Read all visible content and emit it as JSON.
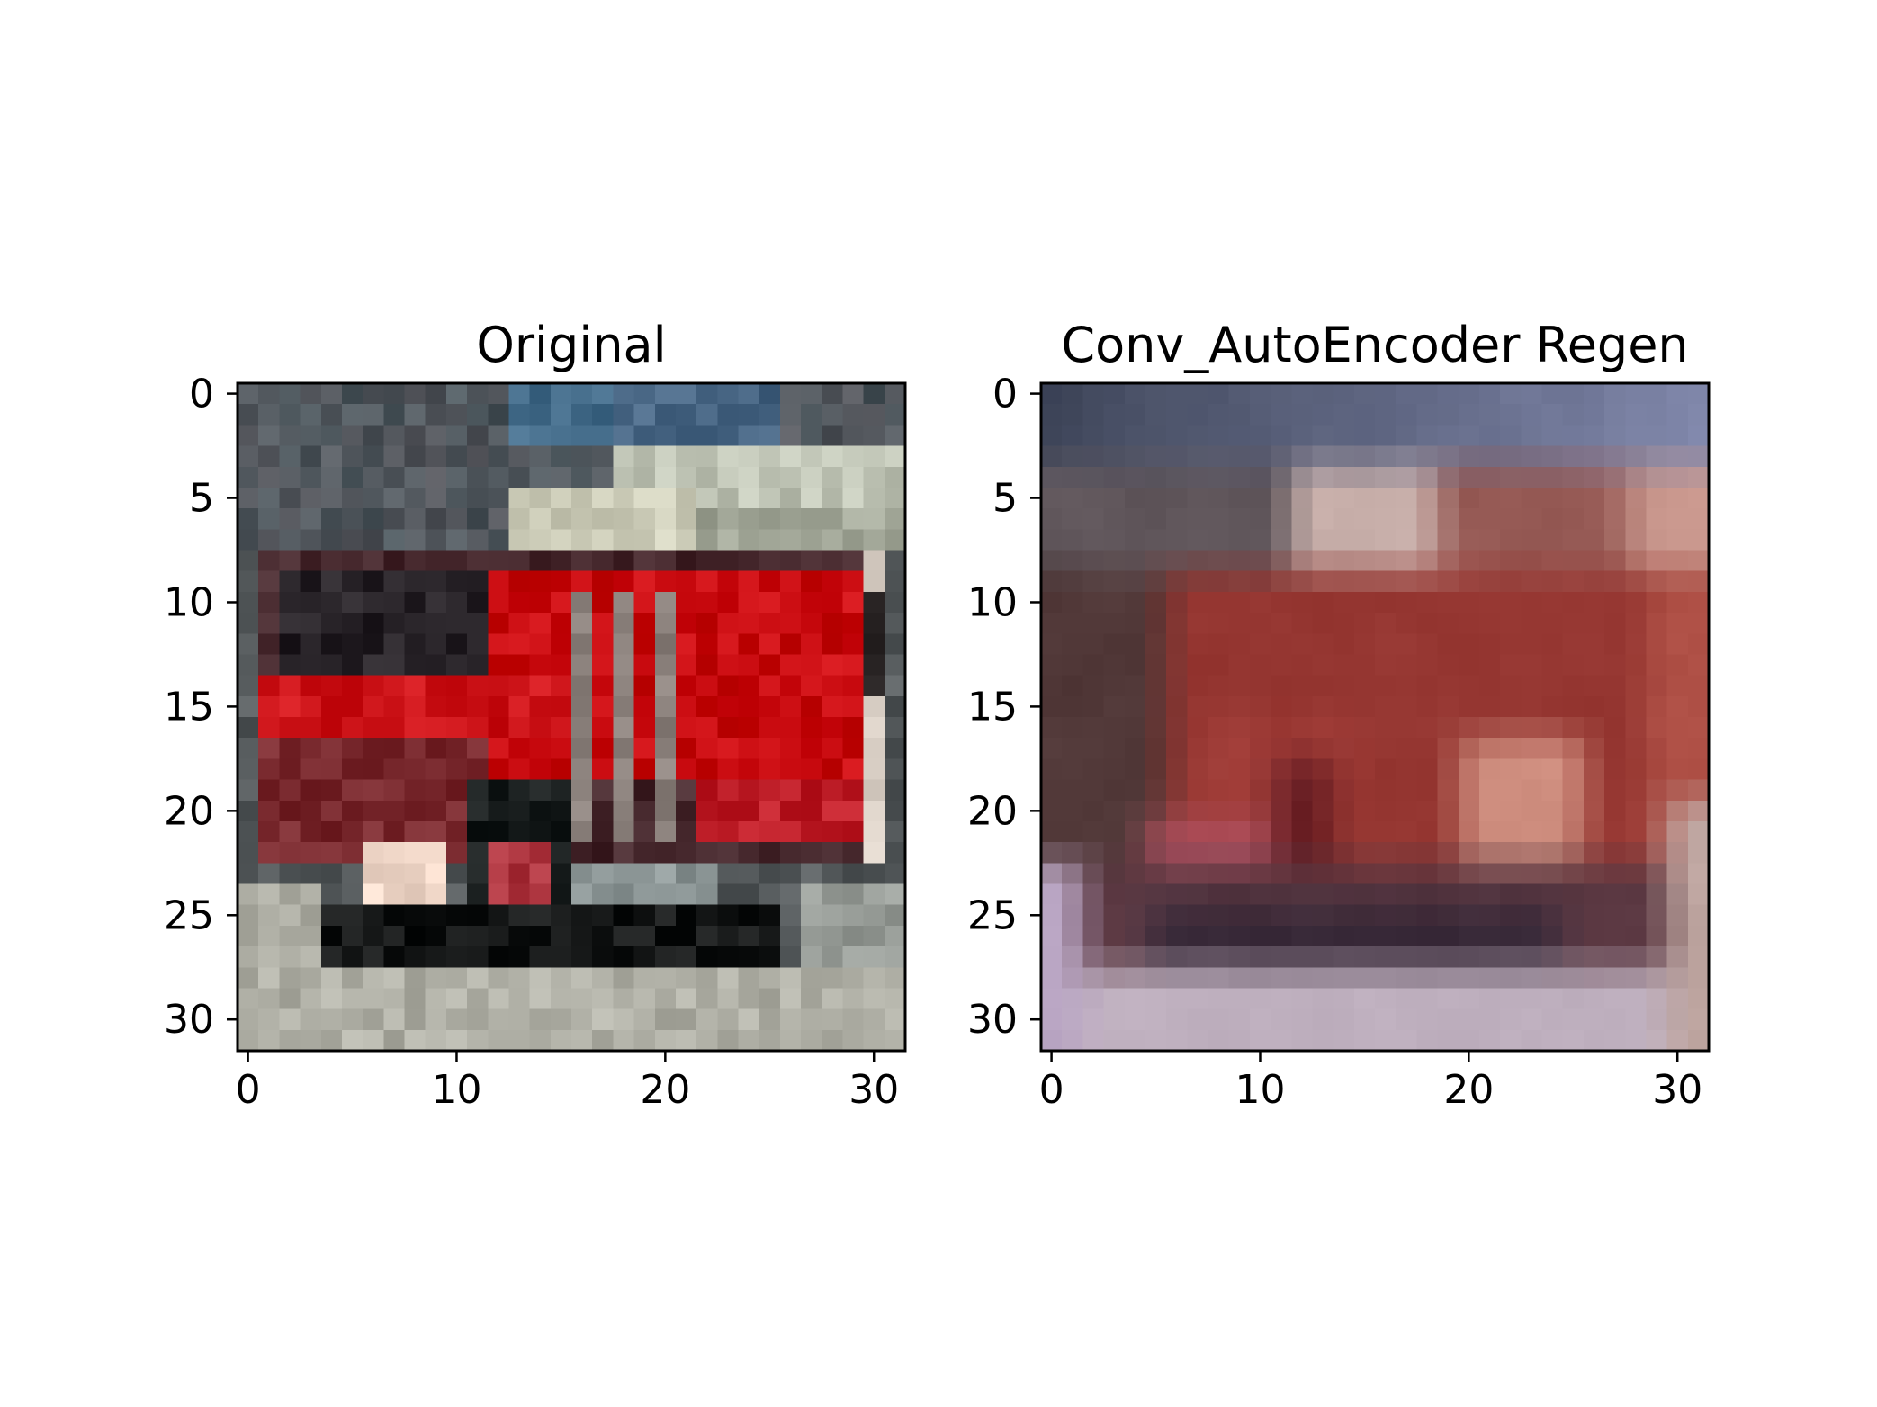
{
  "chart_data": [
    {
      "type": "heatmap",
      "title": "Original",
      "xlabel": "",
      "ylabel": "",
      "xlim": [
        -0.5,
        31.5
      ],
      "ylim": [
        31.5,
        -0.5
      ],
      "x_ticks": [
        0,
        10,
        20,
        30
      ],
      "y_ticks": [
        0,
        5,
        10,
        15,
        20,
        25,
        30
      ],
      "x_tick_labels": [
        "0",
        "10",
        "20",
        "30"
      ],
      "y_tick_labels": [
        "0",
        "5",
        "10",
        "15",
        "20",
        "25",
        "30"
      ],
      "grid": false,
      "image": {
        "width": 32,
        "height": 32,
        "content": "CIFAR-10 image of a red fire truck on a gray road"
      }
    },
    {
      "type": "heatmap",
      "title": "Conv_AutoEncoder Regen",
      "xlabel": "",
      "ylabel": "",
      "xlim": [
        -0.5,
        31.5
      ],
      "ylim": [
        31.5,
        -0.5
      ],
      "x_ticks": [
        0,
        10,
        20,
        30
      ],
      "y_ticks": [
        0,
        5,
        10,
        15,
        20,
        25,
        30
      ],
      "x_tick_labels": [
        "0",
        "10",
        "20",
        "30"
      ],
      "y_tick_labels": [
        "0",
        "5",
        "10",
        "15",
        "20",
        "25",
        "30"
      ],
      "grid": false,
      "image": {
        "width": 32,
        "height": 32,
        "content": "Blurry autoencoder reconstruction of the red fire truck image"
      }
    }
  ]
}
